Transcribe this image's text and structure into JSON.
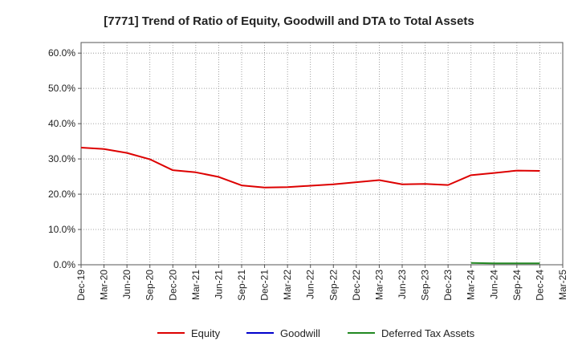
{
  "chart_data": {
    "type": "line",
    "title": "[7771]  Trend of Ratio of Equity, Goodwill and DTA to Total Assets",
    "xlabel": "",
    "ylabel": "",
    "ylim": [
      0,
      63
    ],
    "yticks": [
      0,
      10,
      20,
      30,
      40,
      50,
      60
    ],
    "ytick_labels": [
      "0.0%",
      "10.0%",
      "20.0%",
      "30.0%",
      "40.0%",
      "50.0%",
      "60.0%"
    ],
    "x_tick_labels": [
      "Dec-19",
      "Mar-20",
      "Jun-20",
      "Sep-20",
      "Dec-20",
      "Mar-21",
      "Jun-21",
      "Sep-21",
      "Dec-21",
      "Mar-22",
      "Jun-22",
      "Sep-22",
      "Dec-22",
      "Mar-23",
      "Jun-23",
      "Sep-23",
      "Dec-23",
      "Mar-24",
      "Jun-24",
      "Sep-24",
      "Dec-24",
      "Mar-25"
    ],
    "grid": true,
    "legend_position": "bottom",
    "series": [
      {
        "name": "Equity",
        "color": "#dd0000",
        "start_index": 0,
        "values": [
          33.2,
          32.8,
          31.7,
          29.9,
          26.8,
          26.2,
          24.9,
          22.5,
          21.9,
          22.0,
          22.4,
          22.8,
          23.4,
          24.0,
          22.8,
          22.9,
          22.6,
          25.4,
          26.0,
          26.7,
          26.6
        ]
      },
      {
        "name": "Goodwill",
        "color": "#0000cc",
        "start_index": 0,
        "values": []
      },
      {
        "name": "Deferred Tax Assets",
        "color": "#228822",
        "start_index": 17,
        "values": [
          0.5,
          0.4,
          0.4,
          0.4
        ]
      }
    ]
  }
}
